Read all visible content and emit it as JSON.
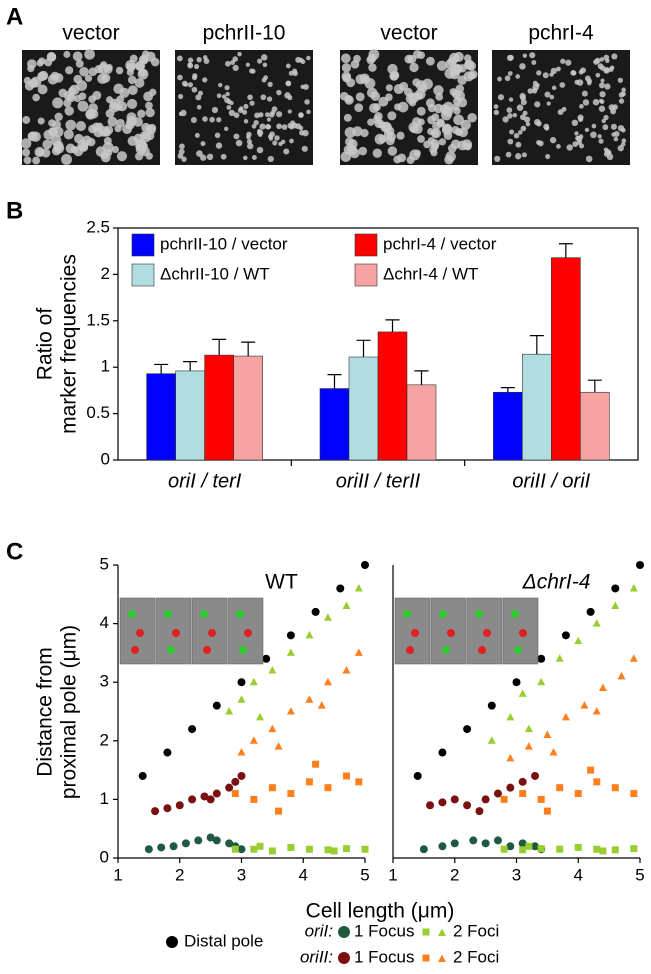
{
  "panel_labels": [
    "A",
    "B",
    "C"
  ],
  "panel_a": {
    "labels": [
      "vector",
      "pchrII-10",
      "vector",
      "pchrI-4"
    ]
  },
  "panel_c": {
    "ylabel": [
      "Distance from",
      "proximal pole (μm)"
    ],
    "xlabel": "Cell length (μm)",
    "legend": {
      "distal": "Distal pole",
      "rows": [
        {
          "prefix": "oriI:",
          "one": "1 Focus",
          "two": "2 Foci"
        },
        {
          "prefix": "oriII:",
          "one": "1 Focus",
          "two": "2 Foci"
        }
      ]
    }
  },
  "chart_data": [
    {
      "type": "bar",
      "ylabel": [
        "Ratio of",
        "marker frequencies"
      ],
      "categories": [
        "oriI / terI",
        "oriII / terII",
        "oriII / oriI"
      ],
      "ylim": [
        0,
        2.5
      ],
      "yticks": [
        0,
        0.5,
        1,
        1.5,
        2,
        2.5
      ],
      "series": [
        {
          "name": "pchrII-10 / vector",
          "color": "#0000ff",
          "values": [
            0.93,
            0.77,
            0.73
          ],
          "errors": [
            0.1,
            0.15,
            0.05
          ]
        },
        {
          "name": "ΔchrII-10 / WT",
          "color": "#b2dde0",
          "values": [
            0.96,
            1.11,
            1.14
          ],
          "errors": [
            0.1,
            0.18,
            0.2
          ]
        },
        {
          "name": "pchrI-4 / vector",
          "color": "#ff0000",
          "values": [
            1.13,
            1.38,
            2.18
          ],
          "errors": [
            0.17,
            0.13,
            0.15
          ]
        },
        {
          "name": "ΔchrI-4 / WT",
          "color": "#f5a3a3",
          "values": [
            1.12,
            0.81,
            0.73
          ],
          "errors": [
            0.15,
            0.15,
            0.13
          ]
        }
      ]
    },
    {
      "type": "scatter",
      "title": "WT",
      "xlim": [
        1,
        5
      ],
      "ylim": [
        0,
        5
      ],
      "xticks": [
        1,
        2,
        3,
        4,
        5
      ],
      "yticks": [
        0,
        1,
        2,
        3,
        4,
        5
      ],
      "series": [
        {
          "marker": "circle",
          "color": "#000000",
          "x": [
            1.4,
            1.8,
            2.2,
            2.6,
            3.0,
            3.4,
            3.8,
            4.2,
            4.6,
            5.0
          ],
          "y": [
            1.4,
            1.8,
            2.2,
            2.6,
            3.0,
            3.4,
            3.8,
            4.2,
            4.6,
            5.0
          ]
        },
        {
          "marker": "circle",
          "color": "#1f5a40",
          "x": [
            1.5,
            1.7,
            1.9,
            2.1,
            2.3,
            2.5,
            2.6,
            2.8,
            2.9,
            3.0
          ],
          "y": [
            0.15,
            0.18,
            0.2,
            0.25,
            0.3,
            0.35,
            0.3,
            0.25,
            0.2,
            0.15
          ]
        },
        {
          "marker": "circle",
          "color": "#7a1010",
          "x": [
            1.6,
            1.8,
            2.0,
            2.2,
            2.4,
            2.6,
            2.8,
            2.9,
            3.0,
            2.5
          ],
          "y": [
            0.8,
            0.85,
            0.9,
            1.0,
            1.05,
            1.1,
            1.2,
            1.3,
            1.4,
            1.0
          ]
        },
        {
          "marker": "square",
          "color": "#9acd32",
          "x": [
            2.9,
            3.2,
            3.5,
            3.8,
            4.1,
            4.4,
            4.7,
            5.0,
            3.3,
            4.5
          ],
          "y": [
            0.15,
            0.15,
            0.12,
            0.18,
            0.15,
            0.14,
            0.16,
            0.15,
            0.2,
            0.12
          ]
        },
        {
          "marker": "triangle",
          "color": "#9acd32",
          "x": [
            2.8,
            3.0,
            3.2,
            3.5,
            3.8,
            4.1,
            4.4,
            4.7,
            4.9,
            3.3
          ],
          "y": [
            2.5,
            2.7,
            3.0,
            3.2,
            3.5,
            3.8,
            4.1,
            4.3,
            4.6,
            2.4
          ]
        },
        {
          "marker": "square",
          "color": "#ff7f1e",
          "x": [
            2.9,
            3.2,
            3.5,
            3.8,
            4.1,
            4.4,
            4.7,
            4.9,
            3.6,
            4.2
          ],
          "y": [
            1.1,
            1.0,
            1.2,
            1.1,
            1.3,
            1.2,
            1.4,
            1.3,
            0.8,
            1.6
          ]
        },
        {
          "marker": "triangle",
          "color": "#ff7f1e",
          "x": [
            3.0,
            3.2,
            3.5,
            3.8,
            4.1,
            4.4,
            4.7,
            4.9,
            3.6,
            4.3
          ],
          "y": [
            1.8,
            2.0,
            2.2,
            2.5,
            2.7,
            3.0,
            3.2,
            3.5,
            1.9,
            2.6
          ]
        }
      ]
    },
    {
      "type": "scatter",
      "title": "ΔchrI-4",
      "xlim": [
        1,
        5
      ],
      "ylim": [
        0,
        5
      ],
      "xticks": [
        1,
        2,
        3,
        4,
        5
      ],
      "series": [
        {
          "marker": "circle",
          "color": "#000000",
          "x": [
            1.4,
            1.8,
            2.2,
            2.6,
            3.0,
            3.4,
            3.8,
            4.2,
            4.6,
            5.0
          ],
          "y": [
            1.4,
            1.8,
            2.2,
            2.6,
            3.0,
            3.4,
            3.8,
            4.2,
            4.6,
            5.0
          ]
        },
        {
          "marker": "circle",
          "color": "#1f5a40",
          "x": [
            1.5,
            1.8,
            2.0,
            2.3,
            2.5,
            2.7,
            2.9,
            3.1,
            3.3,
            3.4
          ],
          "y": [
            0.15,
            0.2,
            0.25,
            0.3,
            0.25,
            0.3,
            0.2,
            0.25,
            0.2,
            0.15
          ]
        },
        {
          "marker": "circle",
          "color": "#7a1010",
          "x": [
            1.6,
            1.8,
            2.0,
            2.2,
            2.5,
            2.7,
            2.9,
            3.1,
            3.3,
            2.4
          ],
          "y": [
            0.9,
            0.95,
            1.0,
            0.9,
            1.0,
            1.1,
            1.2,
            1.3,
            1.4,
            0.8
          ]
        },
        {
          "marker": "square",
          "color": "#9acd32",
          "x": [
            2.8,
            3.1,
            3.4,
            3.7,
            4.0,
            4.3,
            4.6,
            4.9,
            3.2,
            4.4
          ],
          "y": [
            0.15,
            0.14,
            0.16,
            0.15,
            0.18,
            0.15,
            0.14,
            0.16,
            0.2,
            0.12
          ]
        },
        {
          "marker": "triangle",
          "color": "#9acd32",
          "x": [
            2.6,
            2.9,
            3.1,
            3.4,
            3.7,
            4.0,
            4.3,
            4.6,
            4.9,
            3.2
          ],
          "y": [
            2.0,
            2.4,
            2.8,
            3.0,
            3.4,
            3.7,
            4.0,
            4.3,
            4.6,
            2.2
          ]
        },
        {
          "marker": "square",
          "color": "#ff7f1e",
          "x": [
            2.8,
            3.1,
            3.4,
            3.7,
            4.0,
            4.3,
            4.6,
            4.9,
            3.5,
            4.2
          ],
          "y": [
            1.0,
            1.1,
            1.0,
            1.2,
            1.1,
            1.3,
            1.2,
            1.1,
            0.8,
            1.5
          ]
        },
        {
          "marker": "triangle",
          "color": "#ff7f1e",
          "x": [
            2.9,
            3.2,
            3.5,
            3.8,
            4.1,
            4.4,
            4.7,
            4.9,
            3.6,
            4.3
          ],
          "y": [
            1.7,
            1.9,
            2.1,
            2.4,
            2.6,
            2.9,
            3.1,
            3.4,
            1.8,
            2.5
          ]
        }
      ]
    }
  ]
}
